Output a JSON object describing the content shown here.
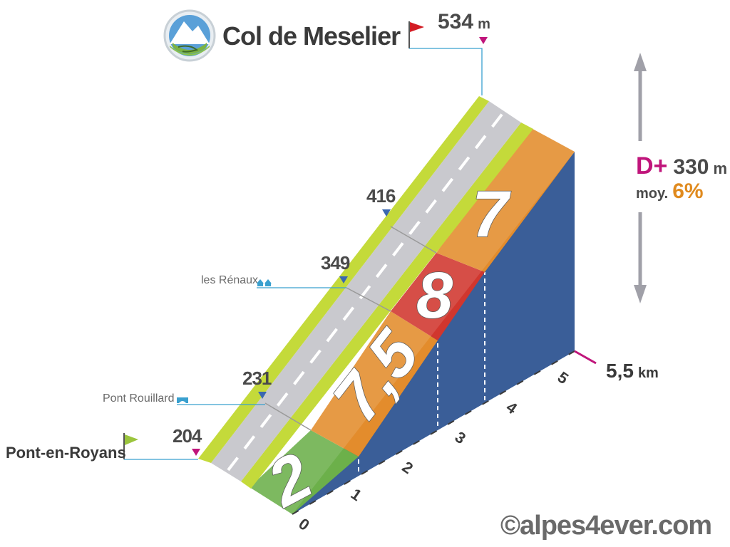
{
  "col": {
    "name": "Col de Meselier",
    "summit_alt": "534",
    "summit_unit": "m"
  },
  "start": {
    "name": "Pont-en-Royans",
    "alt": "204"
  },
  "waypoints": [
    {
      "alt": "231",
      "label": "Pont Rouillard"
    },
    {
      "alt": "349",
      "label": "les Rénaux"
    },
    {
      "alt": "416",
      "label": ""
    }
  ],
  "stats": {
    "dplus_label": "D+",
    "dplus_value": "330",
    "dplus_unit": "m",
    "avg_label": "moy.",
    "avg_value": "6%"
  },
  "distance": {
    "total": "5,5",
    "unit": "km",
    "ticks": [
      "0",
      "1",
      "2",
      "3",
      "4",
      "5"
    ]
  },
  "segments": [
    {
      "grade": "2",
      "color": "#6cb04a"
    },
    {
      "grade": "7,5",
      "color": "#e38c2c"
    },
    {
      "grade": "8",
      "color": "#d1362e"
    },
    {
      "grade": "7",
      "color": "#e38c2c"
    }
  ],
  "colors": {
    "side": "#3a5e98",
    "road": "#c9c9ce",
    "verge": "#c4da3a",
    "accent": "#c0157b",
    "avg": "#e08a1e"
  },
  "copyright": "©alpes4ever.com"
}
